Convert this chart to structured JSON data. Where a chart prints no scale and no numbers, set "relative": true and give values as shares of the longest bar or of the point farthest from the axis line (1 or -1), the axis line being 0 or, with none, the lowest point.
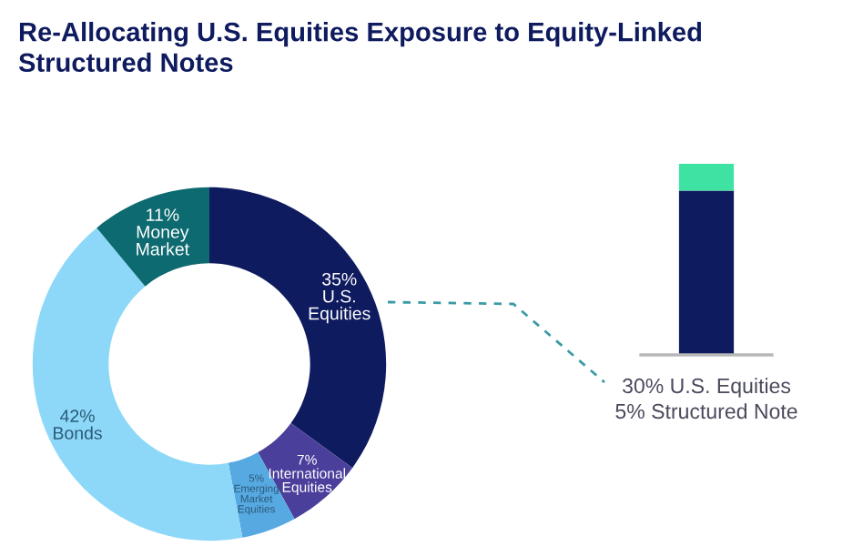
{
  "chart_data": [
    {
      "type": "donut",
      "title": "Re-Allocating U.S. Equities Exposure to Equity-Linked\nStructured Notes",
      "categories": [
        "U.S.\nEquities",
        "International\nEquities",
        "Emerging\nMarket\nEquities",
        "Bonds",
        "Money\nMarket"
      ],
      "values": [
        35,
        7,
        5,
        42,
        11
      ],
      "value_labels": [
        "35%",
        "7%",
        "5%",
        "42%",
        "11%"
      ],
      "colors": [
        "#0f1b5f",
        "#4b3f9c",
        "#57a9e2",
        "#8dd8f8",
        "#0d6a70"
      ],
      "legend": false
    },
    {
      "type": "bar",
      "stacked": true,
      "categories": [
        null
      ],
      "relative": true,
      "series": [
        {
          "color": "#0f1b5f",
          "values": [
            0.86
          ]
        },
        {
          "color": "#3ee3a3",
          "values": [
            0.14
          ]
        }
      ],
      "tick_labels": false,
      "annotations": [
        "30% U.S. Equities",
        "5% Structured Note"
      ]
    }
  ]
}
